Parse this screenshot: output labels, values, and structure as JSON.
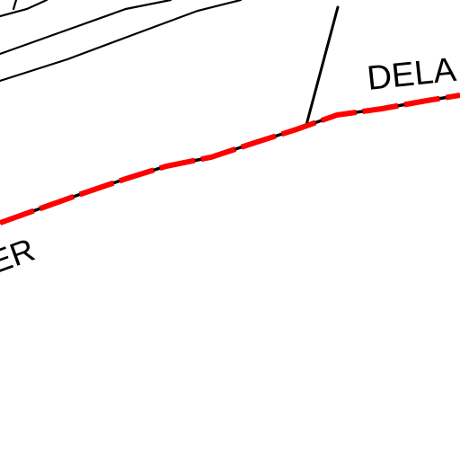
{
  "map": {
    "labels": {
      "river_right": "DELA",
      "river_left": "ER"
    },
    "colors": {
      "background": "#ffffff",
      "line_work": "#000000",
      "boundary_dash": "#ff0000"
    }
  }
}
